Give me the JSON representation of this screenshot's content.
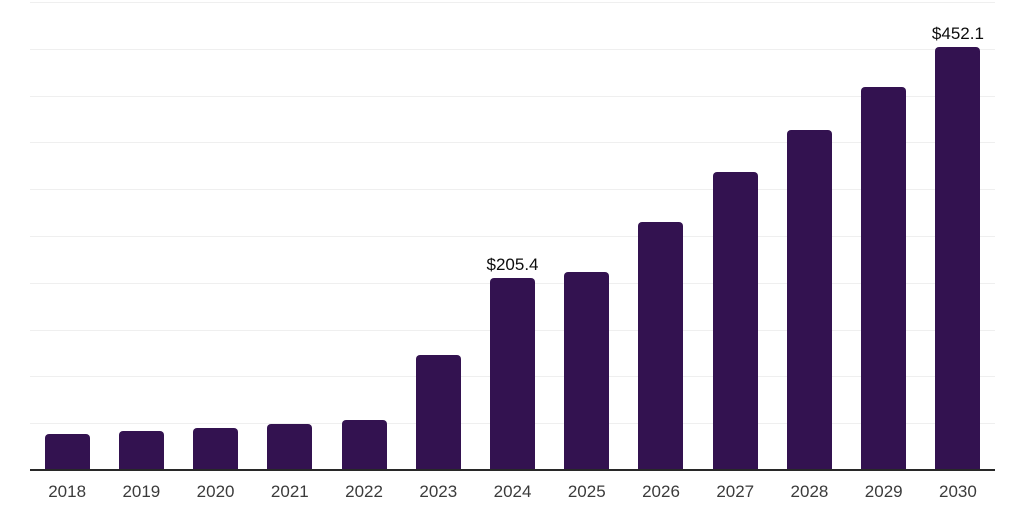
{
  "chart_data": {
    "type": "bar",
    "title": "",
    "xlabel": "",
    "ylabel": "",
    "categories": [
      "2018",
      "2019",
      "2020",
      "2021",
      "2022",
      "2023",
      "2024",
      "2025",
      "2026",
      "2027",
      "2028",
      "2029",
      "2030"
    ],
    "values": [
      38.6,
      41.8,
      45.0,
      49.3,
      53.0,
      123.2,
      205.4,
      212.1,
      264.6,
      317.9,
      363.7,
      408.9,
      452.1
    ],
    "bar_labels": [
      "",
      "",
      "",
      "",
      "",
      "",
      "$205.4",
      "",
      "",
      "",
      "",
      "",
      "$452.1"
    ],
    "ylim": [
      0,
      500
    ],
    "gridline_step": 50,
    "grid": "horizontal-only",
    "y_tick_labels_visible": false,
    "legend_position": "none"
  },
  "colors": {
    "background": "#ffffff",
    "bar": "#331250",
    "gridline": "#efefef",
    "axis": "#282828",
    "x_label": "#3b3b3b",
    "value_label": "#0d0d0d"
  }
}
